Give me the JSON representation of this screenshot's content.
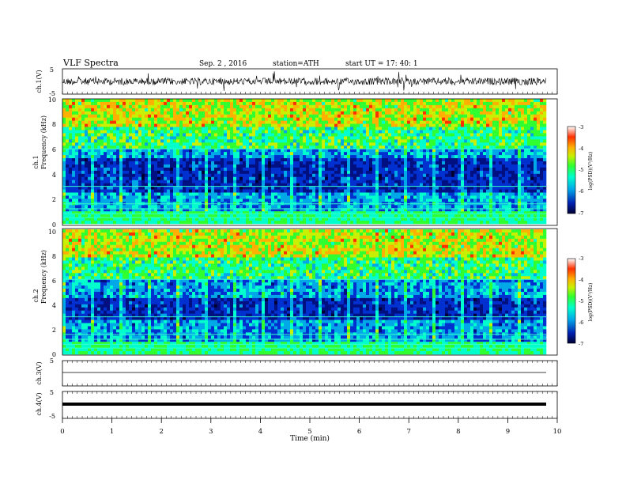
{
  "header": {
    "title": "VLF  Spectra",
    "date": "Sep. 2  , 2016",
    "station": "station=ATH",
    "start": "start  UT  =    17: 40: 1"
  },
  "colors": {
    "spectrum_scale": [
      "#000033",
      "#001080",
      "#0030d0",
      "#00a8e8",
      "#00ffcc",
      "#30ff30",
      "#c8f000",
      "#ffb000",
      "#ff3000",
      "#ffffff"
    ],
    "trace": "#000000"
  },
  "colorbar": {
    "label": "log(PSD)(V²/Hz)",
    "ticks": [
      "-3",
      "-4",
      "-5",
      "-6",
      "-7"
    ]
  },
  "chart_data": [
    {
      "type": "line",
      "panel": "ch1",
      "ylabel": "ch.1(V)",
      "ylim": [
        -5,
        5
      ],
      "yticks": [
        "5",
        "-5"
      ],
      "description_values": "broadband noise trace roughly between -2 and 2 V",
      "x": [
        0,
        1,
        2,
        3,
        4,
        5,
        6,
        7,
        8,
        9,
        9.8
      ],
      "values": [
        0.2,
        0.1,
        0.3,
        0.0,
        0.2,
        0.1,
        0.2,
        0.0,
        0.3,
        0.1,
        0.2
      ]
    },
    {
      "type": "heatmap",
      "panel": "ch1-spectrogram",
      "ylabel_top": "ch.1",
      "ylabel": "Frequency  (kHz)",
      "ylim": [
        0,
        10
      ],
      "yticks": [
        "0",
        "2",
        "4",
        "6",
        "8",
        "10"
      ],
      "zlim": [
        -7,
        -3
      ],
      "xlim": [
        0,
        9.8
      ]
    },
    {
      "type": "heatmap",
      "panel": "ch2-spectrogram",
      "ylabel_top": "ch.2",
      "ylabel": "Frequency  (kHz)",
      "ylim": [
        0,
        10
      ],
      "yticks": [
        "0",
        "2",
        "4",
        "6",
        "8",
        "10"
      ],
      "zlim": [
        -7,
        -3
      ],
      "xlim": [
        0,
        9.8
      ]
    },
    {
      "type": "line",
      "panel": "ch3",
      "ylabel": "ch.3(V)",
      "ylim": [
        -5,
        5
      ],
      "yticks": [
        "5",
        "-5"
      ],
      "x": [
        0,
        9.8
      ],
      "values": [
        0,
        0
      ]
    },
    {
      "type": "line",
      "panel": "ch4",
      "ylabel": "ch.4(V)",
      "ylim": [
        -5,
        5
      ],
      "yticks": [
        "5",
        "-5"
      ],
      "x": [
        0,
        9.8
      ],
      "values": [
        0,
        0
      ]
    }
  ],
  "xaxis": {
    "label": "Time  (min)",
    "ticks": [
      "0",
      "1",
      "2",
      "3",
      "4",
      "5",
      "6",
      "7",
      "8",
      "9",
      "10"
    ]
  }
}
